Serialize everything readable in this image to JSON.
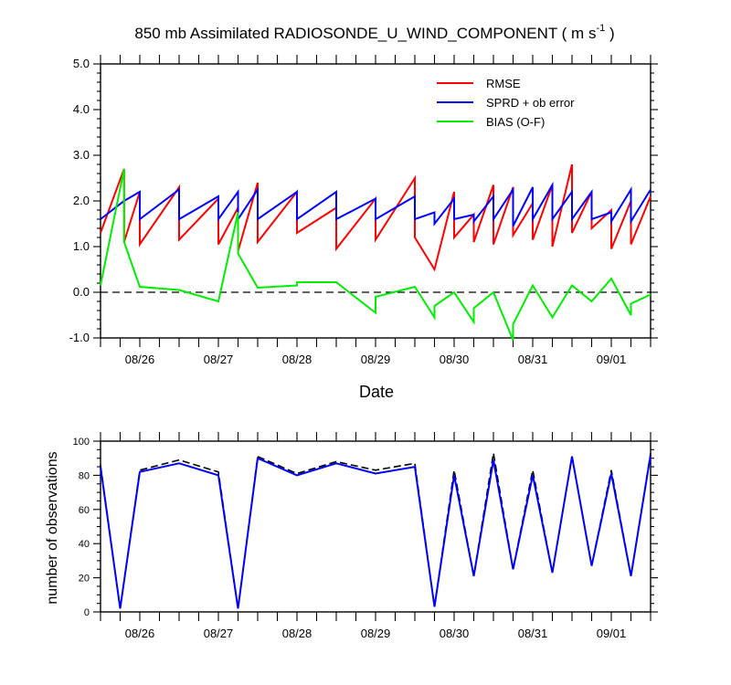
{
  "chart_data": [
    {
      "type": "line",
      "title": "850 mb Assimilated RADIOSONDE_U_WIND_COMPONENT ( m s",
      "title_units_sup": "-1",
      "title_close": " )",
      "xlabel": "Date",
      "ylabel": "",
      "ylim": [
        -1.0,
        5.0
      ],
      "yticks": [
        "-1.0",
        "0.0",
        "1.0",
        "2.0",
        "3.0",
        "4.0",
        "5.0"
      ],
      "ytick_values": [
        -1.0,
        0.0,
        1.0,
        2.0,
        3.0,
        4.0,
        5.0
      ],
      "xlim": [
        0,
        35
      ],
      "xtick_labels": [
        "08/26",
        "08/27",
        "08/28",
        "08/29",
        "08/30",
        "08/31",
        "09/01"
      ],
      "xtick_positions": [
        2.5,
        7.5,
        12.5,
        17.5,
        22.5,
        27.5,
        32.5
      ],
      "zero_line": true,
      "legend_position": "top-right",
      "x": [
        0,
        1.5,
        1.5,
        2.5,
        2.5,
        5,
        5,
        7.5,
        7.5,
        8.75,
        8.75,
        10,
        10,
        12.5,
        12.5,
        15,
        15,
        17.5,
        17.5,
        20,
        20,
        21.25,
        21.25,
        22.5,
        22.5,
        23.75,
        23.75,
        25,
        25,
        26.25,
        26.25,
        27.5,
        27.5,
        28.75,
        28.75,
        30,
        30,
        31.25,
        31.25,
        32.5,
        32.5,
        33.75,
        33.75,
        35
      ],
      "series": [
        {
          "name": "RMSE",
          "color": "#ff0000",
          "values": [
            1.3,
            2.7,
            1.1,
            2.2,
            1.05,
            2.3,
            1.15,
            2.05,
            1.05,
            1.85,
            0.9,
            2.4,
            1.1,
            2.2,
            1.3,
            1.85,
            0.95,
            2.05,
            1.15,
            2.5,
            1.2,
            0.5,
            0.5,
            2.2,
            1.2,
            1.7,
            1.1,
            2.35,
            1.05,
            2.3,
            1.25,
            1.95,
            1.15,
            2.35,
            1.0,
            2.8,
            1.3,
            2.2,
            1.4,
            1.8,
            0.95,
            2.0,
            1.05,
            2.1
          ]
        },
        {
          "name": "SPRD + ob error",
          "color": "#0000ff",
          "values": [
            1.6,
            2.0,
            2.0,
            2.2,
            1.6,
            2.25,
            1.6,
            2.1,
            1.6,
            2.2,
            1.6,
            2.25,
            1.6,
            2.2,
            1.6,
            2.2,
            1.6,
            2.05,
            1.6,
            2.1,
            1.6,
            1.75,
            1.5,
            2.05,
            1.6,
            1.7,
            1.55,
            2.1,
            1.6,
            2.25,
            1.45,
            2.3,
            1.6,
            2.35,
            1.6,
            2.2,
            1.6,
            2.2,
            1.6,
            1.75,
            1.55,
            2.25,
            1.55,
            2.25
          ]
        },
        {
          "name": "BIAS (O-F)",
          "color": "#00ee00",
          "values": [
            0.15,
            2.7,
            1.1,
            0.12,
            0.12,
            0.05,
            0.05,
            -0.2,
            -0.2,
            1.75,
            0.85,
            0.1,
            0.1,
            0.15,
            0.22,
            0.22,
            0.22,
            -0.45,
            -0.1,
            0.12,
            0.12,
            -0.55,
            -0.3,
            0.0,
            0.0,
            -0.65,
            -0.35,
            0.0,
            0.0,
            -1.05,
            -0.7,
            0.15,
            0.15,
            -0.55,
            -0.55,
            0.15,
            0.15,
            -0.2,
            -0.2,
            0.3,
            0.3,
            -0.5,
            -0.25,
            -0.05
          ]
        }
      ]
    },
    {
      "type": "line",
      "title": "",
      "xlabel": "",
      "ylabel": "number of observations",
      "ylim": [
        0,
        100
      ],
      "yticks": [
        "0",
        "20",
        "40",
        "60",
        "80",
        "100"
      ],
      "ytick_values": [
        0,
        20,
        40,
        60,
        80,
        100
      ],
      "xlim": [
        0,
        35
      ],
      "xtick_labels": [
        "08/26",
        "08/27",
        "08/28",
        "08/29",
        "08/30",
        "08/31",
        "09/01"
      ],
      "xtick_positions": [
        2.5,
        7.5,
        12.5,
        17.5,
        22.5,
        27.5,
        32.5
      ],
      "x": [
        0,
        1.25,
        2.5,
        5,
        7.5,
        8.75,
        10,
        12.5,
        15,
        17.5,
        20,
        21.25,
        22.5,
        23.75,
        25,
        26.25,
        27.5,
        28.75,
        30,
        31.25,
        32.5,
        33.75,
        35
      ],
      "series": [
        {
          "name": "dashed",
          "color": "#000000",
          "style": "dashed",
          "values": [
            86,
            2,
            83,
            89,
            82,
            2,
            91,
            81,
            88,
            83,
            87,
            3,
            83,
            21,
            93,
            25,
            83,
            23,
            91,
            27,
            83,
            21,
            93
          ]
        },
        {
          "name": "solid",
          "color": "#0000ff",
          "style": "solid",
          "values": [
            85,
            2,
            82,
            87,
            80,
            2,
            90,
            80,
            87,
            81,
            85,
            3,
            80,
            21,
            89,
            25,
            80,
            23,
            91,
            27,
            81,
            21,
            92
          ]
        }
      ]
    }
  ]
}
